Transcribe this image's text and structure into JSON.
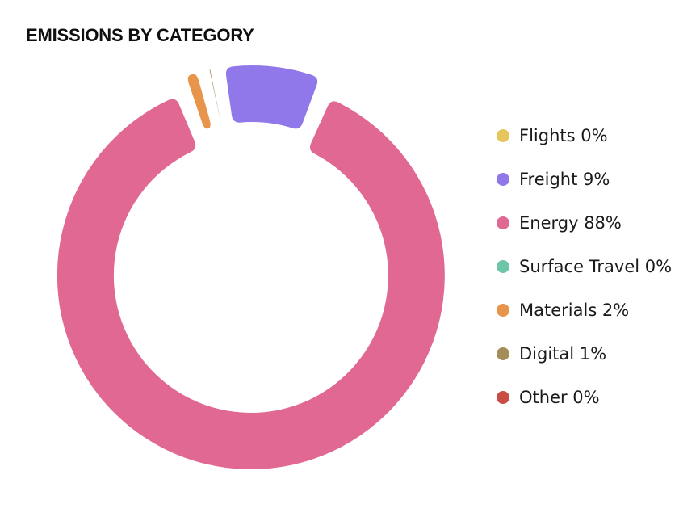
{
  "chart_data": {
    "type": "pie",
    "title": "EMISSIONS BY CATEGORY",
    "categories": [
      "Flights",
      "Freight",
      "Energy",
      "Surface Travel",
      "Materials",
      "Digital",
      "Other"
    ],
    "values": [
      0,
      9,
      88,
      0,
      2,
      1,
      0
    ],
    "value_labels": [
      "0%",
      "9%",
      "88%",
      "0%",
      "2%",
      "1%",
      "0%"
    ],
    "colors": [
      "#e6c65c",
      "#9178ea",
      "#e06893",
      "#6fc5a8",
      "#e8944a",
      "#a58d5a",
      "#c94d45"
    ],
    "legend_labels": [
      "Flights 0%",
      "Freight 9%",
      "Energy 88%",
      "Surface Travel 0%",
      "Materials 2%",
      "Digital 1%",
      "Other 0%"
    ],
    "legend_position": "right",
    "donut": true
  }
}
